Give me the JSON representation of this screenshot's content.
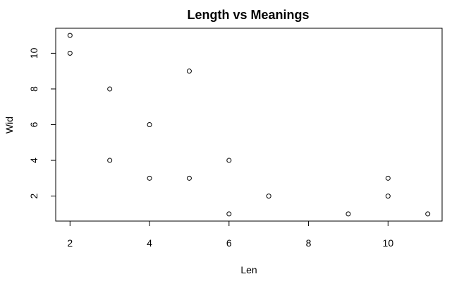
{
  "chart_data": {
    "type": "scatter",
    "title": "Length vs Meanings",
    "xlabel": "Len",
    "ylabel": "Wid",
    "xlim": [
      1.64,
      11.36
    ],
    "ylim": [
      0.6,
      11.4
    ],
    "x_ticks": [
      2,
      4,
      6,
      8,
      10
    ],
    "y_ticks": [
      2,
      4,
      6,
      8,
      10
    ],
    "grid": false,
    "legend": "none",
    "marker": "open-circle",
    "series": [
      {
        "points": [
          {
            "x": 2,
            "y": 11
          },
          {
            "x": 2,
            "y": 10
          },
          {
            "x": 3,
            "y": 8
          },
          {
            "x": 3,
            "y": 4
          },
          {
            "x": 4,
            "y": 6
          },
          {
            "x": 4,
            "y": 3
          },
          {
            "x": 5,
            "y": 9
          },
          {
            "x": 5,
            "y": 3
          },
          {
            "x": 6,
            "y": 4
          },
          {
            "x": 6,
            "y": 1
          },
          {
            "x": 7,
            "y": 2
          },
          {
            "x": 9,
            "y": 1
          },
          {
            "x": 10,
            "y": 3
          },
          {
            "x": 10,
            "y": 2
          },
          {
            "x": 11,
            "y": 1
          }
        ]
      }
    ]
  }
}
